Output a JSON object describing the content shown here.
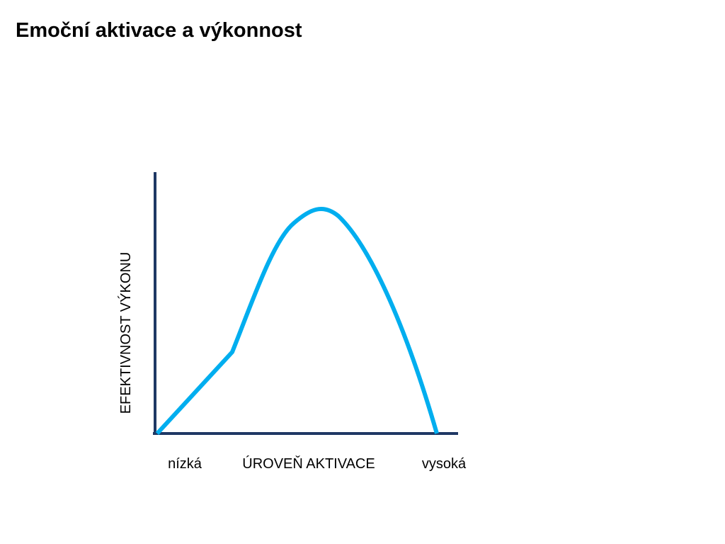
{
  "header": {
    "title": "Emoční aktivace a výkonnost"
  },
  "diagram": {
    "y_axis_label": "EFEKTIVNOST VÝKONU",
    "x_axis_label": "ÚROVEŇ AKTIVACE",
    "x_low_label": "nízká",
    "x_high_label": "vysoká"
  }
}
